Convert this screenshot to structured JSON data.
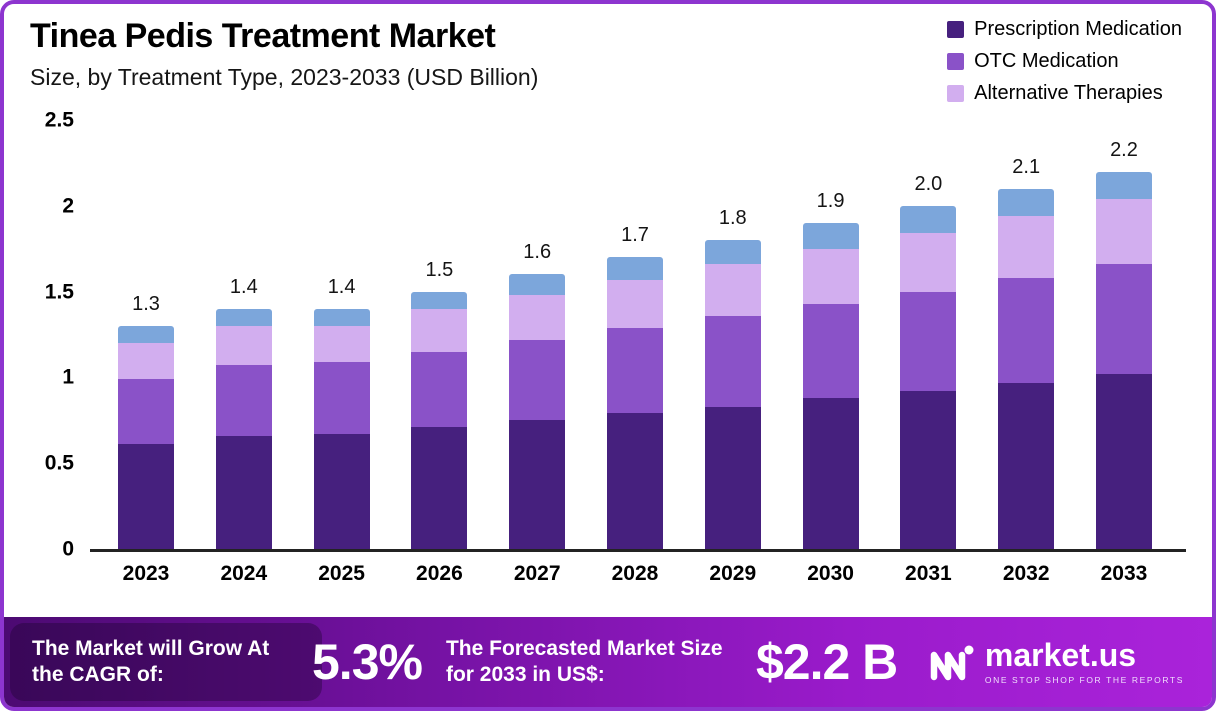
{
  "chart_data": {
    "type": "bar",
    "stacked": true,
    "title": "Tinea Pedis Treatment Market",
    "subtitle": "Size, by Treatment Type, 2023-2033 (USD Billion)",
    "categories": [
      "2023",
      "2024",
      "2025",
      "2026",
      "2027",
      "2028",
      "2029",
      "2030",
      "2031",
      "2032",
      "2033"
    ],
    "series": [
      {
        "name": "Prescription Medication",
        "color": "#46207E",
        "values": [
          0.61,
          0.66,
          0.67,
          0.71,
          0.75,
          0.79,
          0.83,
          0.88,
          0.92,
          0.97,
          1.02
        ]
      },
      {
        "name": "OTC Medication",
        "color": "#8A52C8",
        "values": [
          0.38,
          0.41,
          0.42,
          0.44,
          0.47,
          0.5,
          0.53,
          0.55,
          0.58,
          0.61,
          0.64
        ]
      },
      {
        "name": "Alternative Therapies",
        "color": "#D2AEEF",
        "values": [
          0.21,
          0.23,
          0.21,
          0.25,
          0.26,
          0.28,
          0.3,
          0.32,
          0.34,
          0.36,
          0.38
        ]
      },
      {
        "name": "",
        "color": "#7CA6DB",
        "values": [
          0.1,
          0.1,
          0.1,
          0.1,
          0.12,
          0.13,
          0.14,
          0.15,
          0.16,
          0.16,
          0.16
        ]
      }
    ],
    "note": "top blue segment has no legend entry in the source image",
    "totals": [
      1.3,
      1.4,
      1.4,
      1.5,
      1.6,
      1.7,
      1.8,
      1.9,
      2.0,
      2.1,
      2.2
    ],
    "total_labels": [
      "1.3",
      "1.4",
      "1.4",
      "1.5",
      "1.6",
      "1.7",
      "1.8",
      "1.9",
      "2.0",
      "2.1",
      "2.2"
    ],
    "ylim": [
      0,
      2.5
    ],
    "yticks": [
      0,
      0.5,
      1,
      1.5,
      2,
      2.5
    ],
    "ytick_labels": [
      "0",
      "0.5",
      "1",
      "1.5",
      "2",
      "2.5"
    ],
    "grid": false,
    "legend_position": "top-right"
  },
  "banner": {
    "cagr_label": "The Market will Grow At the CAGR of:",
    "cagr_value": "5.3%",
    "forecast_label": "The Forecasted Market Size for 2033 in US$:",
    "forecast_value": "$2.2 B",
    "logo_text": "market.us",
    "logo_tagline": "ONE STOP SHOP FOR THE REPORTS"
  }
}
